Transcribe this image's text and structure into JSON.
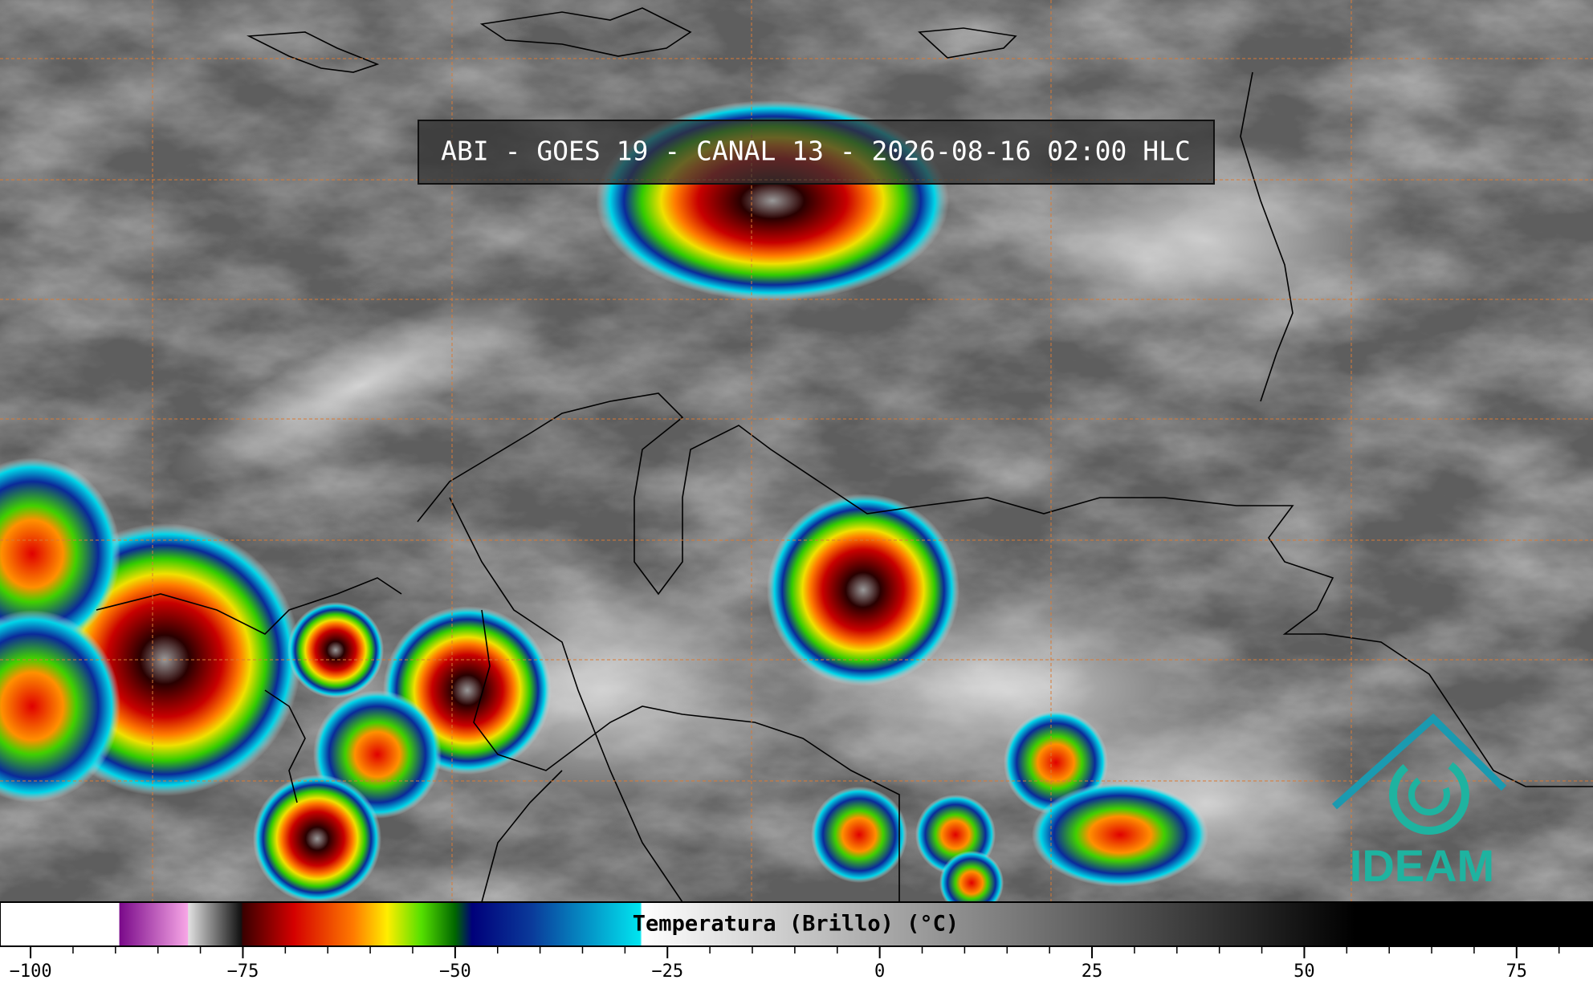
{
  "title": "ABI - GOES 19 - CANAL 13 - 2026-08-16 02:00 HLC",
  "logo_text": "IDEAM",
  "colorbar": {
    "label": "Temperatura (Brillo) (°C)",
    "clim": [
      -103.6,
      84
    ],
    "ticks": [
      {
        "value": -100,
        "label": "−100"
      },
      {
        "value": -75,
        "label": "−75"
      },
      {
        "value": -50,
        "label": "−50"
      },
      {
        "value": -25,
        "label": "−25"
      },
      0,
      25,
      50,
      75
    ],
    "minor_tick_step": 5,
    "colormap": [
      {
        "value": -103.6,
        "color": "#ffffff"
      },
      {
        "value": -89.6,
        "color": "#ffffff"
      },
      {
        "value": -89.5,
        "color": "#7a0a8a"
      },
      {
        "value": -81.5,
        "color": "#f7a6e6"
      },
      {
        "value": -81.4,
        "color": "#e0e0e0"
      },
      {
        "value": -75.2,
        "color": "#111111"
      },
      {
        "value": -75,
        "color": "#3a0000"
      },
      {
        "value": -69,
        "color": "#d40000"
      },
      {
        "value": -62,
        "color": "#ff7a00"
      },
      {
        "value": -58,
        "color": "#ffee00"
      },
      {
        "value": -54,
        "color": "#55e000"
      },
      {
        "value": -50,
        "color": "#006600"
      },
      {
        "value": -48,
        "color": "#00007a"
      },
      {
        "value": -41,
        "color": "#0a3a9a"
      },
      {
        "value": -28.2,
        "color": "#00e5f0"
      },
      {
        "value": -28,
        "color": "#ffffff"
      },
      {
        "value": 56,
        "color": "#000000"
      },
      {
        "value": 84,
        "color": "#000000"
      }
    ]
  }
}
